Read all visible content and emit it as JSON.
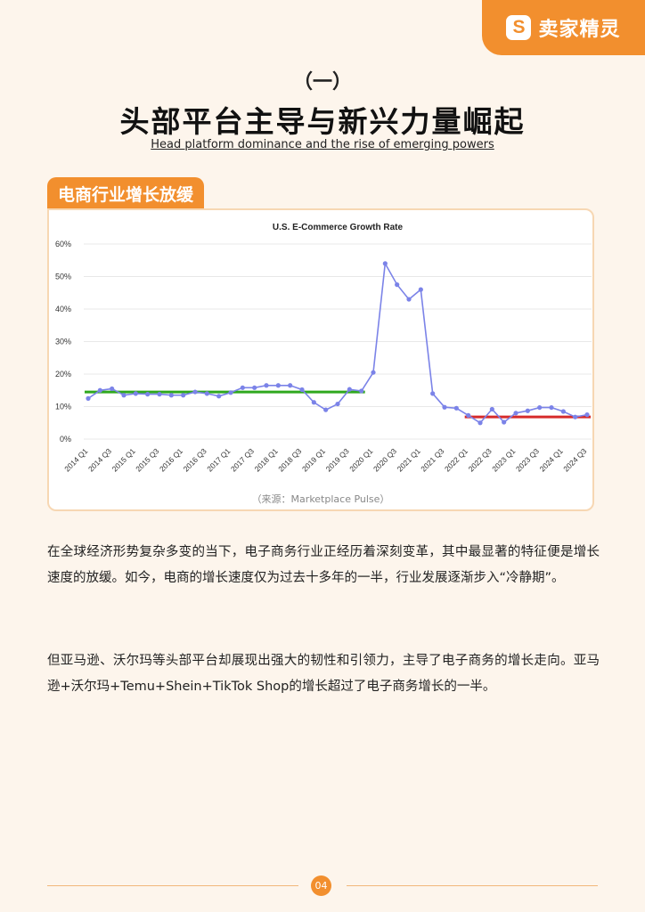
{
  "brand": {
    "logo_letter": "S",
    "logo_text": "卖家精灵",
    "color": "#f28f2e"
  },
  "heading": {
    "section_no": "（一）",
    "title": "头部平台主导与新兴力量崛起",
    "subtitle": "Head platform dominance and the rise of emerging powers"
  },
  "tag_label": "电商行业增长放缓",
  "chart_source": "（来源：Marketplace Pulse）",
  "chart_data": {
    "type": "line",
    "title": "U.S. E-Commerce Growth Rate",
    "xlabel": "",
    "ylabel": "",
    "ylim": [
      0,
      60
    ],
    "yticks": [
      "0%",
      "10%",
      "20%",
      "30%",
      "40%",
      "50%",
      "60%"
    ],
    "grid": true,
    "x": [
      "2014 Q1",
      "2014 Q2",
      "2014 Q3",
      "2014 Q4",
      "2015 Q1",
      "2015 Q2",
      "2015 Q3",
      "2015 Q4",
      "2016 Q1",
      "2016 Q2",
      "2016 Q3",
      "2016 Q4",
      "2017 Q1",
      "2017 Q2",
      "2017 Q3",
      "2017 Q4",
      "2018 Q1",
      "2018 Q2",
      "2018 Q3",
      "2018 Q4",
      "2019 Q1",
      "2019 Q2",
      "2019 Q3",
      "2019 Q4",
      "2020 Q1",
      "2020 Q2",
      "2020 Q3",
      "2020 Q4",
      "2021 Q1",
      "2021 Q2",
      "2021 Q3",
      "2021 Q4",
      "2022 Q1",
      "2022 Q2",
      "2022 Q3",
      "2022 Q4",
      "2023 Q1",
      "2023 Q2",
      "2023 Q3",
      "2023 Q4",
      "2024 Q1",
      "2024 Q2",
      "2024 Q3"
    ],
    "xticks": [
      "2014 Q1",
      "2014 Q3",
      "2015 Q1",
      "2015 Q3",
      "2016 Q1",
      "2016 Q3",
      "2017 Q1",
      "2017 Q3",
      "2018 Q1",
      "2018 Q3",
      "2019 Q1",
      "2019 Q3",
      "2020 Q1",
      "2020 Q3",
      "2021 Q1",
      "2021 Q3",
      "2022 Q1",
      "2022 Q3",
      "2023 Q1",
      "2023 Q3",
      "2024 Q1",
      "2024 Q3"
    ],
    "series": [
      {
        "values": [
          12.5,
          15,
          15.5,
          13.5,
          14,
          13.8,
          13.8,
          13.5,
          13.5,
          14.5,
          14,
          13.2,
          14.3,
          15.8,
          15.8,
          16.5,
          16.5,
          16.5,
          15.2,
          11.3,
          9,
          10.8,
          15.3,
          14.8,
          20.5,
          54,
          47.5,
          43,
          46,
          14,
          9.8,
          9.5,
          7.3,
          5,
          9.2,
          5.2,
          8,
          8.7,
          9.7,
          9.7,
          8.5,
          6.8,
          7.5
        ],
        "color": "#7b83e8"
      }
    ],
    "trend_lines": [
      {
        "from": "2014 Q1",
        "to": "2019 Q4",
        "value": 14.5,
        "color": "#2fa81e"
      },
      {
        "from": "2022 Q1",
        "to": "2024 Q3",
        "value": 6.8,
        "color": "#d62b2b"
      }
    ]
  },
  "paragraphs": [
    "在全球经济形势复杂多变的当下，电子商务行业正经历着深刻变革，其中最显著的特征便是增长速度的放缓。如今，电商的增长速度仅为过去十多年的一半，行业发展逐渐步入“冷静期”。",
    "但亚马逊、沃尔玛等头部平台却展现出强大的韧性和引领力，主导了电子商务的增长走向。亚马逊+沃尔玛+Temu+Shein+TikTok Shop的增长超过了电子商务增长的一半。"
  ],
  "page_number": "04"
}
